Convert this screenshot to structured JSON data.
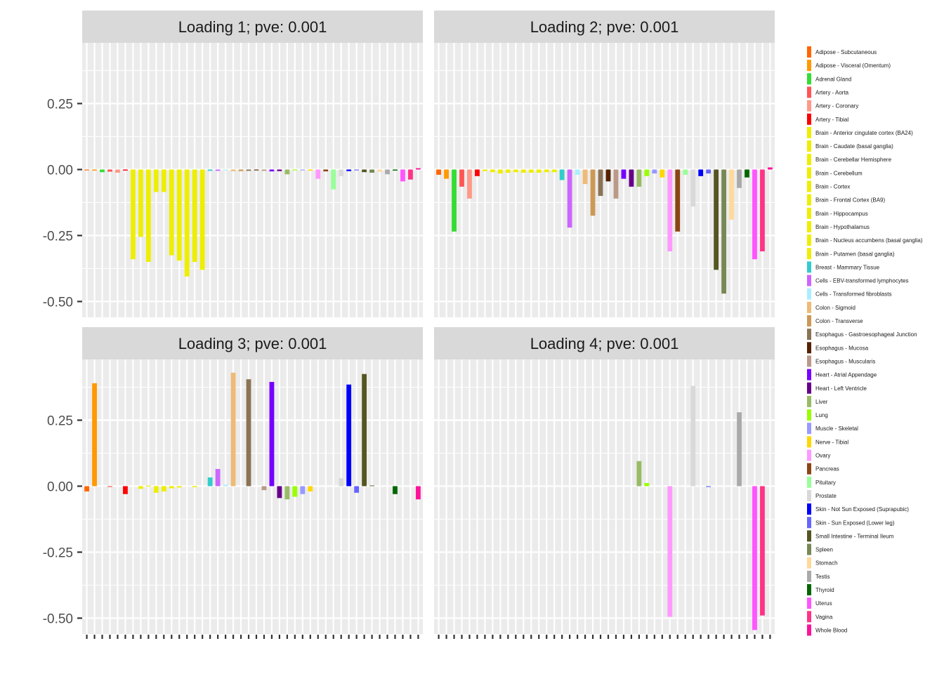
{
  "chart_data": {
    "type": "bar",
    "facets": [
      "Loading 1; pve: 0.001",
      "Loading 2; pve: 0.001",
      "Loading 3; pve: 0.001",
      "Loading 4; pve: 0.001"
    ],
    "ylim": [
      -0.56,
      0.48
    ],
    "yticks": [
      -0.5,
      -0.25,
      0.0,
      0.25
    ],
    "ytick_labels": [
      "-0.50",
      "-0.25",
      "0.00",
      "0.25"
    ],
    "grid": true,
    "legend_position": "right",
    "categories": [
      "Adipose - Subcutaneous",
      "Adipose - Visceral (Omentum)",
      "Adrenal Gland",
      "Artery - Aorta",
      "Artery - Coronary",
      "Artery - Tibial",
      "Brain - Anterior cingulate cortex (BA24)",
      "Brain - Caudate (basal ganglia)",
      "Brain - Cerebellar Hemisphere",
      "Brain - Cerebellum",
      "Brain - Cortex",
      "Brain - Frontal Cortex (BA9)",
      "Brain - Hippocampus",
      "Brain - Hypothalamus",
      "Brain - Nucleus accumbens (basal ganglia)",
      "Brain - Putamen (basal ganglia)",
      "Breast - Mammary Tissue",
      "Cells - EBV-transformed lymphocytes",
      "Cells - Transformed fibroblasts",
      "Colon - Sigmoid",
      "Colon - Transverse",
      "Esophagus - Gastroesophageal Junction",
      "Esophagus - Mucosa",
      "Esophagus - Muscularis",
      "Heart - Atrial Appendage",
      "Heart - Left Ventricle",
      "Liver",
      "Lung",
      "Muscle - Skeletal",
      "Nerve - Tibial",
      "Ovary",
      "Pancreas",
      "Pituitary",
      "Prostate",
      "Skin - Not Sun Exposed (Suprapubic)",
      "Skin - Sun Exposed (Lower leg)",
      "Small Intestine - Terminal Ileum",
      "Spleen",
      "Stomach",
      "Testis",
      "Thyroid",
      "Uterus",
      "Vagina",
      "Whole Blood"
    ],
    "colors": [
      "#ff6600",
      "#ff9900",
      "#33dd33",
      "#ff5555",
      "#ff9988",
      "#ff0000",
      "#eeee00",
      "#eeee00",
      "#eeee00",
      "#eeee00",
      "#eeee00",
      "#eeee00",
      "#eeee00",
      "#eeee00",
      "#eeee00",
      "#eeee00",
      "#33cccc",
      "#cc66ff",
      "#aaeeff",
      "#eebb77",
      "#cc9955",
      "#8b7355",
      "#552200",
      "#bb9988",
      "#7700ff",
      "#660088",
      "#99bb66",
      "#99ff00",
      "#9999ff",
      "#ffd700",
      "#ff99ff",
      "#8b4513",
      "#99ff99",
      "#d9d9d9",
      "#0000ff",
      "#6666ff",
      "#555522",
      "#778855",
      "#ffd999",
      "#aaaaaa",
      "#006600",
      "#ff55ff",
      "#ff3388",
      "#ff1199"
    ],
    "series": [
      {
        "values": [
          -0.003,
          -0.004,
          -0.01,
          -0.008,
          -0.012,
          -0.004,
          -0.34,
          -0.255,
          -0.35,
          -0.085,
          -0.085,
          -0.325,
          -0.345,
          -0.405,
          -0.35,
          -0.38,
          -0.005,
          -0.005,
          -0.002,
          -0.006,
          -0.006,
          -0.005,
          -0.003,
          -0.005,
          -0.007,
          -0.006,
          -0.018,
          -0.002,
          -0.002,
          -0.004,
          -0.035,
          -0.007,
          -0.075,
          -0.025,
          -0.006,
          -0.003,
          -0.01,
          -0.012,
          -0.008,
          -0.018,
          -0.004,
          -0.045,
          -0.038,
          0.005
        ]
      },
      {
        "values": [
          -0.02,
          -0.035,
          -0.235,
          -0.065,
          -0.11,
          -0.025,
          -0.006,
          -0.01,
          -0.015,
          -0.012,
          -0.01,
          -0.012,
          -0.012,
          -0.012,
          -0.01,
          -0.01,
          -0.04,
          -0.22,
          -0.02,
          -0.055,
          -0.175,
          -0.1,
          -0.045,
          -0.11,
          -0.035,
          -0.065,
          -0.065,
          -0.025,
          -0.015,
          -0.03,
          -0.31,
          -0.235,
          -0.02,
          -0.14,
          -0.025,
          -0.015,
          -0.38,
          -0.47,
          -0.19,
          -0.07,
          -0.03,
          -0.34,
          -0.31,
          0.008
        ]
      },
      {
        "values": [
          -0.02,
          0.39,
          0.0,
          -0.002,
          0.0,
          -0.03,
          0.0,
          -0.01,
          0.002,
          -0.025,
          -0.02,
          -0.008,
          -0.005,
          0.0,
          -0.004,
          0.0,
          0.033,
          0.065,
          0.005,
          0.43,
          0.0,
          0.405,
          0.0,
          -0.015,
          0.395,
          -0.045,
          -0.05,
          -0.04,
          -0.03,
          -0.02,
          0.0,
          0.0,
          0.0,
          0.03,
          0.385,
          -0.025,
          0.425,
          0.003,
          0.0,
          0.0,
          -0.03,
          0.0,
          0.0,
          -0.05
        ]
      },
      {
        "values": [
          0,
          0,
          0,
          0,
          0,
          0,
          0,
          0,
          0,
          0,
          0,
          0,
          0,
          0,
          0,
          0,
          0,
          0,
          0,
          0,
          0,
          0,
          0,
          0,
          0,
          0,
          0.095,
          0.012,
          0,
          0,
          -0.495,
          0,
          0,
          0.38,
          0,
          -0.002,
          0,
          0,
          0,
          0.28,
          0,
          -0.545,
          -0.49,
          0
        ]
      }
    ]
  }
}
